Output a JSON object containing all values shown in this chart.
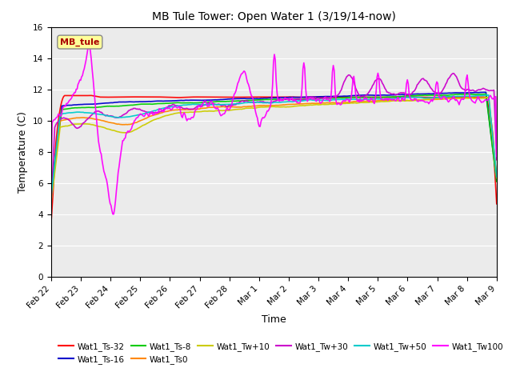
{
  "title": "MB Tule Tower: Open Water 1 (3/19/14-now)",
  "ylabel": "Temperature (C)",
  "xlabel": "Time",
  "ylim": [
    0,
    16
  ],
  "yticks": [
    0,
    2,
    4,
    6,
    8,
    10,
    12,
    14,
    16
  ],
  "annotation_label": "MB_tule",
  "background_color": "#ebebeb",
  "xtick_labels": [
    "Feb 22",
    "Feb 23",
    "Feb 24",
    "Feb 25",
    "Feb 26",
    "Feb 27",
    "Feb 28",
    "Mar 1",
    "Mar 2",
    "Mar 3",
    "Mar 4",
    "Mar 5",
    "Mar 6",
    "Mar 7",
    "Mar 8",
    "Mar 9"
  ],
  "num_xticks": 16,
  "series_colors": {
    "Wat1_Ts-32": "#ff0000",
    "Wat1_Ts-16": "#0000cc",
    "Wat1_Ts-8": "#00cc00",
    "Wat1_Ts0": "#ff8800",
    "Wat1_Tw+10": "#cccc00",
    "Wat1_Tw+30": "#cc00cc",
    "Wat1_Tw+50": "#00cccc",
    "Wat1_Tw100": "#ff00ff"
  }
}
